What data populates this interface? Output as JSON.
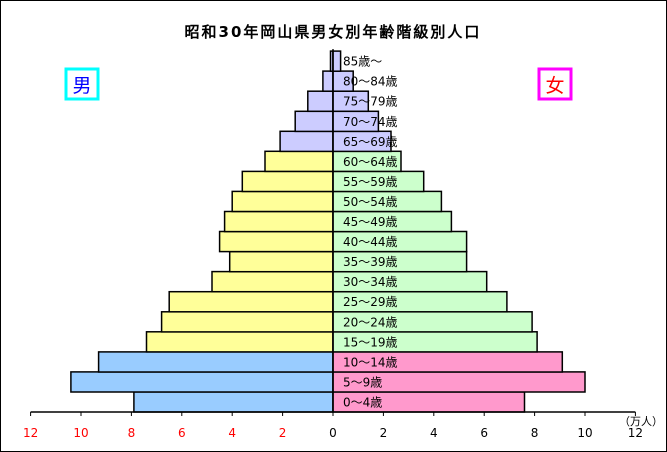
{
  "chart_data": {
    "type": "bar",
    "title": "昭和30年岡山県男女別年齢階級別人口",
    "unit_label": "（万人）",
    "male_label": "男",
    "female_label": "女",
    "categories": [
      "0〜4歳",
      "5〜9歳",
      "10〜14歳",
      "15〜19歳",
      "20〜24歳",
      "25〜29歳",
      "30〜34歳",
      "35〜39歳",
      "40〜44歳",
      "45〜49歳",
      "50〜54歳",
      "55〜59歳",
      "60〜64歳",
      "65〜69歳",
      "70〜74歳",
      "75〜79歳",
      "80〜84歳",
      "85歳〜"
    ],
    "series": [
      {
        "name": "男",
        "values": [
          7.9,
          10.4,
          9.3,
          7.4,
          6.8,
          6.5,
          4.8,
          4.1,
          4.5,
          4.3,
          4.0,
          3.6,
          2.7,
          2.1,
          1.5,
          1.0,
          0.4,
          0.1
        ]
      },
      {
        "name": "女",
        "values": [
          7.6,
          10.0,
          9.1,
          8.1,
          7.9,
          6.9,
          6.1,
          5.3,
          5.3,
          4.7,
          4.3,
          3.6,
          2.7,
          2.3,
          1.8,
          1.4,
          0.8,
          0.3
        ]
      }
    ],
    "x_ticks_left": [
      "12",
      "10",
      "8",
      "6",
      "4",
      "2"
    ],
    "x_ticks_right": [
      "0",
      "2",
      "4",
      "6",
      "8",
      "10",
      "12"
    ],
    "xlim": [
      -12,
      12
    ],
    "colors": {
      "male_young": "#99ccff",
      "male_working": "#ffff99",
      "male_old": "#ccccff",
      "female_young": "#ff99cc",
      "female_working": "#ccffcc",
      "female_old": "#ccccff",
      "male_box_border": "#00ffff",
      "male_text": "#0000ff",
      "female_box_border": "#ff00ff",
      "female_text": "#ff0000",
      "tick_left": "#ff0000",
      "tick_right": "#000000"
    }
  }
}
